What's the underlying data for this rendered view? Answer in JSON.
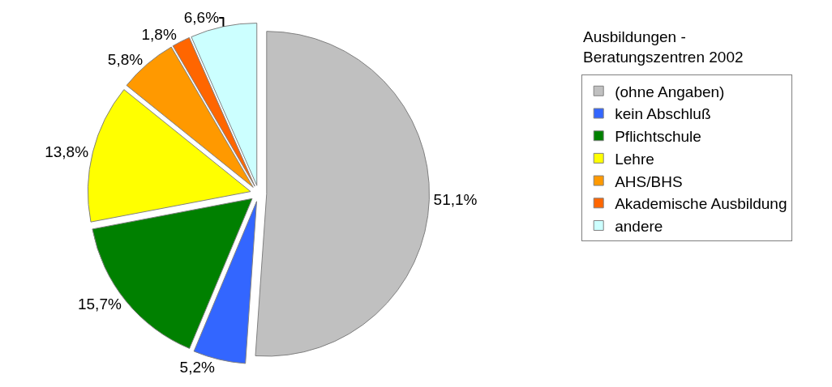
{
  "chart_data": {
    "type": "pie",
    "legend_title": "Ausbildungen - Beratungszentren 2002",
    "categories": [
      "(ohne Angaben)",
      "kein Abschluß",
      "Pflichtschule",
      "Lehre",
      "AHS/BHS",
      "Akademische Ausbildung",
      "andere"
    ],
    "values": [
      51.1,
      5.2,
      15.7,
      13.8,
      5.8,
      1.8,
      6.6
    ],
    "value_labels": [
      "51,1%",
      "5,2%",
      "15,7%",
      "13,8%",
      "5,8%",
      "1,8%",
      "6,6%"
    ],
    "colors": [
      "#c0c0c0",
      "#3366ff",
      "#008000",
      "#ffff00",
      "#ff9900",
      "#ff6600",
      "#ccffff"
    ],
    "legend": "right"
  }
}
